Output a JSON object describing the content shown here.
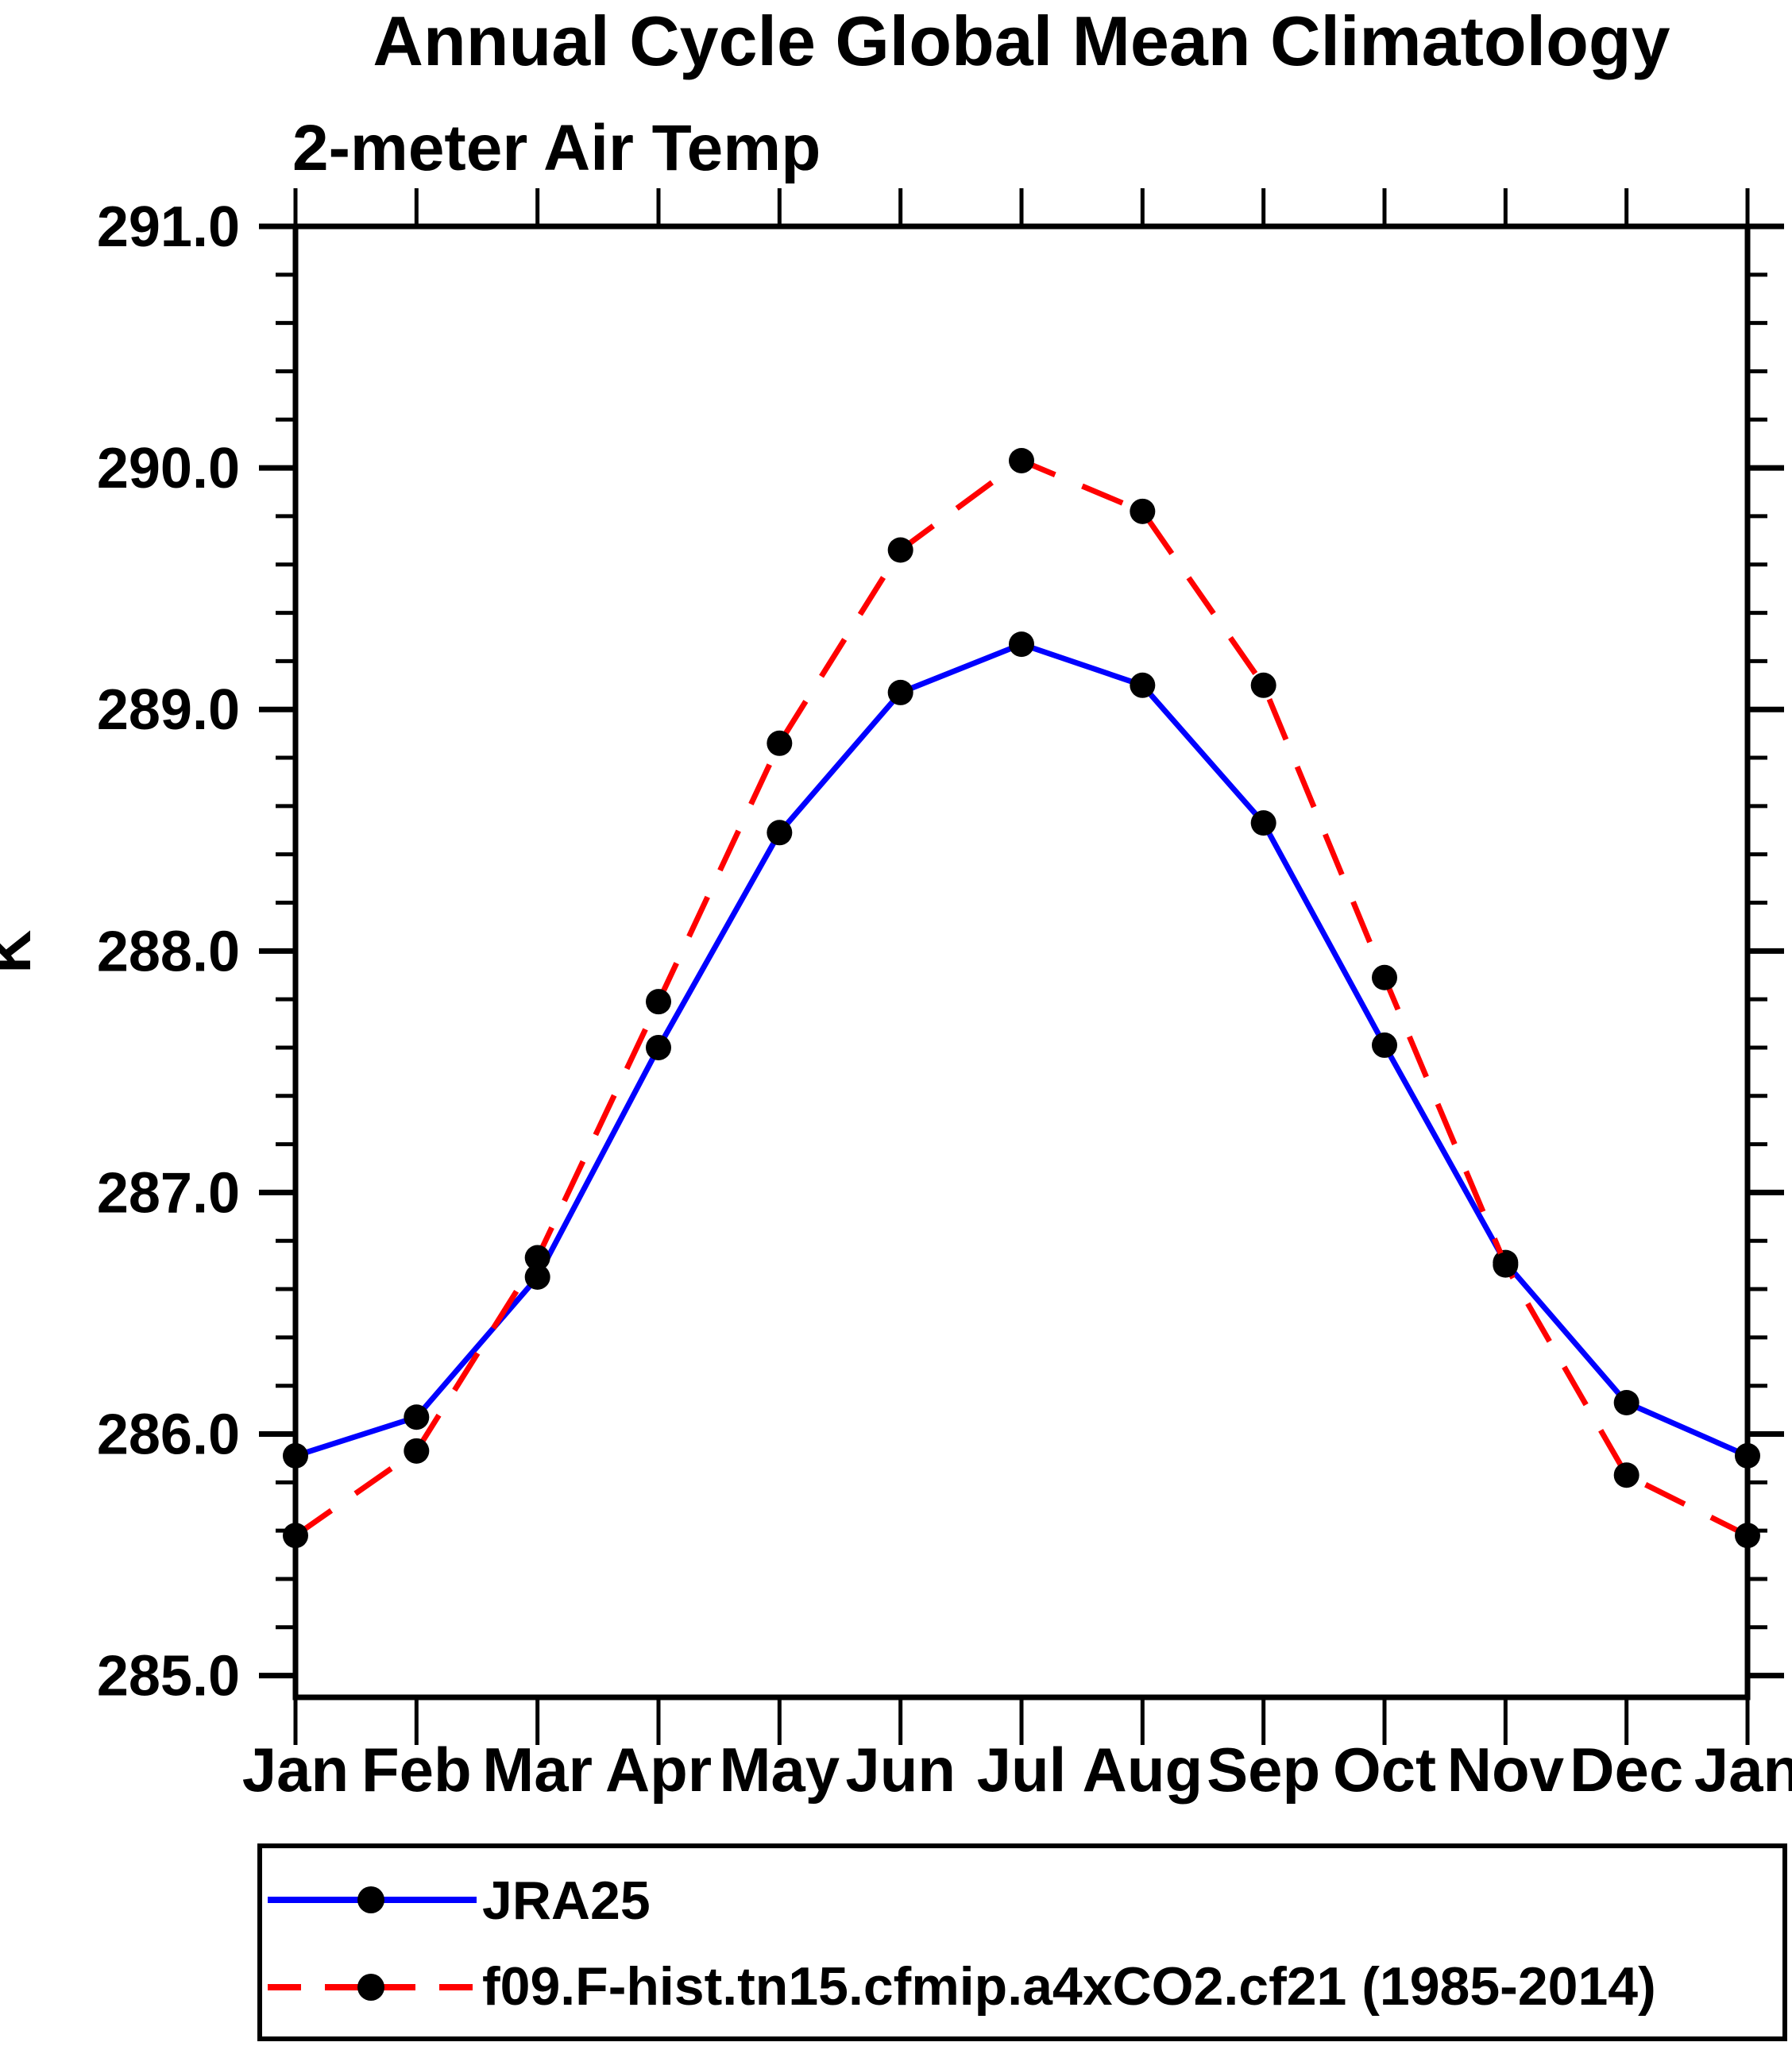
{
  "chart_data": {
    "type": "line",
    "title": "Annual Cycle Global Mean Climatology",
    "subtitle": "2-meter Air Temp",
    "ylabel": "K",
    "xlabel": "",
    "categories": [
      "Jan",
      "Feb",
      "Mar",
      "Apr",
      "May",
      "Jun",
      "Jul",
      "Aug",
      "Sep",
      "Oct",
      "Nov",
      "Dec",
      "Jan"
    ],
    "series": [
      {
        "name": "JRA25",
        "line_style": "solid",
        "color": "#0000ff",
        "marker": "filled-circle",
        "marker_color": "#000000",
        "values": [
          285.91,
          286.07,
          286.65,
          287.6,
          288.49,
          289.07,
          289.27,
          289.1,
          288.53,
          287.61,
          286.71,
          286.13,
          285.91
        ]
      },
      {
        "name": "f09.F-hist.tn15.cfmip.a4xCO2.cf21 (1985-2014)",
        "line_style": "dashed",
        "color": "#ff0000",
        "marker": "filled-circle",
        "marker_color": "#000000",
        "values": [
          285.58,
          285.93,
          286.73,
          287.79,
          288.86,
          289.66,
          290.03,
          289.82,
          289.1,
          287.89,
          286.7,
          285.83,
          285.58
        ]
      }
    ],
    "ylim": [
      284.91,
      291.0
    ],
    "ytick_values": [
      285.0,
      286.0,
      287.0,
      288.0,
      289.0,
      290.0,
      291.0
    ],
    "ytick_labels": [
      "285.0",
      "286.0",
      "287.0",
      "288.0",
      "289.0",
      "290.0",
      "291.0"
    ],
    "yminor_step": 0.2,
    "grid": false,
    "legend_position": "bottom-left-box",
    "frame_color": "#000000"
  }
}
